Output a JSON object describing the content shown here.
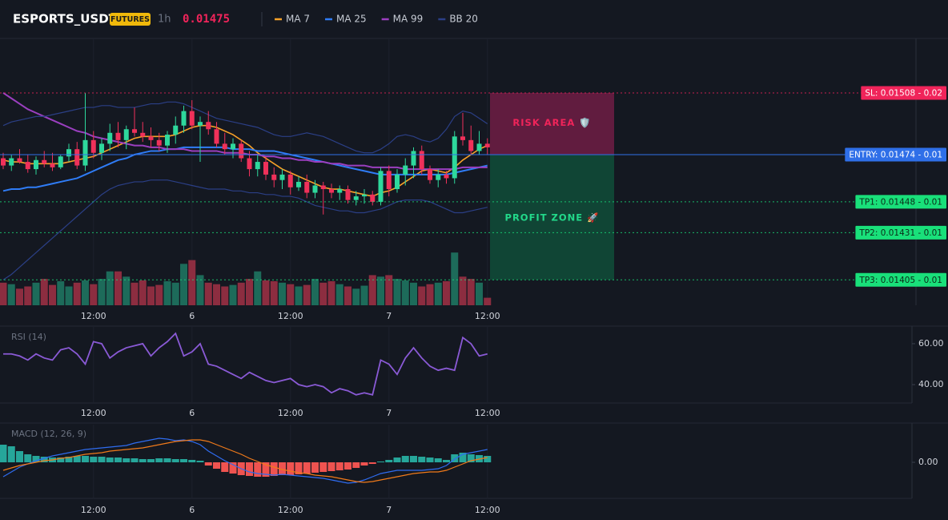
{
  "header": {
    "symbol": "ESPORTS_USDT",
    "badge": "FUTURES",
    "interval": "1h",
    "price": 0.01475
  },
  "chart_data": [
    {
      "type": "candlestick",
      "categories": [
        null,
        null,
        null,
        null,
        null,
        null,
        null,
        null,
        null,
        null,
        null,
        "12:00",
        null,
        null,
        null,
        null,
        null,
        null,
        null,
        null,
        null,
        null,
        null,
        "6",
        null,
        null,
        null,
        null,
        null,
        null,
        null,
        null,
        null,
        null,
        null,
        "12:00",
        null,
        null,
        null,
        null,
        null,
        null,
        null,
        null,
        null,
        null,
        null,
        "7",
        null,
        null,
        null,
        null,
        null,
        null,
        null,
        null,
        null,
        null,
        null,
        "12:00"
      ],
      "open": [
        0.01472,
        0.01468,
        0.01472,
        0.0147,
        0.01466,
        0.01471,
        0.01469,
        0.01467,
        0.01473,
        0.01477,
        0.01468,
        0.01482,
        0.01475,
        0.0148,
        0.01486,
        0.01482,
        0.01488,
        0.01486,
        0.01484,
        0.01482,
        0.01479,
        0.01485,
        0.0149,
        0.01498,
        0.0149,
        0.01492,
        0.01488,
        0.0148,
        0.01477,
        0.0148,
        0.01472,
        0.01466,
        0.0147,
        0.01463,
        0.0146,
        0.01463,
        0.01456,
        0.01459,
        0.01453,
        0.01457,
        0.01455,
        0.01453,
        0.01455,
        0.01449,
        0.01451,
        0.01452,
        0.01448,
        0.01465,
        0.01455,
        0.01463,
        0.01468,
        0.01476,
        0.01466,
        0.0146,
        0.01463,
        0.01461,
        0.01484,
        0.01482,
        0.01476,
        0.0148
      ],
      "high": [
        0.01475,
        0.01474,
        0.01477,
        0.01474,
        0.01473,
        0.01476,
        0.01475,
        0.01474,
        0.0148,
        0.01481,
        0.01508,
        0.01487,
        0.01483,
        0.01491,
        0.01492,
        0.0149,
        0.015,
        0.01492,
        0.01489,
        0.01486,
        0.01487,
        0.01495,
        0.01501,
        0.01504,
        0.01495,
        0.01498,
        0.01492,
        0.01486,
        0.01483,
        0.01482,
        0.01476,
        0.01474,
        0.01473,
        0.01467,
        0.01466,
        0.01465,
        0.01462,
        0.01463,
        0.0146,
        0.01459,
        0.01458,
        0.01457,
        0.01457,
        0.01454,
        0.01455,
        0.01454,
        0.01467,
        0.01468,
        0.01466,
        0.01472,
        0.01478,
        0.01479,
        0.01468,
        0.01466,
        0.01465,
        0.01487,
        0.01497,
        0.0149,
        0.01487,
        0.01483
      ],
      "low": [
        0.01466,
        0.01465,
        0.01469,
        0.01464,
        0.01463,
        0.01467,
        0.01465,
        0.01466,
        0.0147,
        0.01466,
        0.01465,
        0.01472,
        0.01471,
        0.01476,
        0.01478,
        0.01477,
        0.01484,
        0.01481,
        0.01478,
        0.01476,
        0.01475,
        0.0148,
        0.01486,
        0.01488,
        0.0147,
        0.01485,
        0.01478,
        0.01474,
        0.01472,
        0.0147,
        0.01462,
        0.01462,
        0.0146,
        0.01456,
        0.01455,
        0.01452,
        0.01454,
        0.0145,
        0.0145,
        0.01441,
        0.0145,
        0.01449,
        0.01447,
        0.01446,
        0.01447,
        0.01446,
        0.01446,
        0.01451,
        0.01453,
        0.01457,
        0.01461,
        0.01463,
        0.01458,
        0.01456,
        0.01458,
        0.01458,
        0.01479,
        0.01474,
        0.01474,
        0.01474
      ],
      "close": [
        0.01468,
        0.01472,
        0.0147,
        0.01466,
        0.01471,
        0.01469,
        0.01467,
        0.01473,
        0.01477,
        0.01468,
        0.01482,
        0.01475,
        0.0148,
        0.01486,
        0.01482,
        0.01488,
        0.01486,
        0.01484,
        0.01482,
        0.01479,
        0.01485,
        0.0149,
        0.01498,
        0.0149,
        0.01492,
        0.01488,
        0.0148,
        0.01477,
        0.0148,
        0.01472,
        0.01466,
        0.0147,
        0.01463,
        0.0146,
        0.01463,
        0.01456,
        0.01459,
        0.01453,
        0.01457,
        0.01455,
        0.01453,
        0.01455,
        0.01449,
        0.01451,
        0.01452,
        0.01448,
        0.01465,
        0.01455,
        0.01463,
        0.01468,
        0.01476,
        0.01466,
        0.0146,
        0.01463,
        0.01461,
        0.01484,
        0.01482,
        0.01476,
        0.0148,
        0.01478
      ],
      "volume": [
        30,
        28,
        22,
        25,
        30,
        35,
        27,
        32,
        25,
        30,
        33,
        28,
        35,
        45,
        45,
        38,
        30,
        33,
        25,
        27,
        32,
        30,
        55,
        60,
        40,
        30,
        28,
        25,
        27,
        30,
        35,
        45,
        33,
        32,
        30,
        28,
        25,
        27,
        35,
        30,
        32,
        28,
        25,
        22,
        26,
        40,
        38,
        40,
        35,
        33,
        30,
        25,
        28,
        30,
        32,
        70,
        38,
        35,
        30,
        10
      ],
      "volume_lim": [
        0,
        100
      ],
      "up_color": "#2ed89c",
      "down_color": "#f0315a",
      "volume_up_color": "#1d6b5a",
      "volume_down_color": "#8c2d40",
      "ylim": [
        0.01391,
        0.01538
      ],
      "grid": true,
      "series": [
        {
          "name": "MA 7",
          "color": "#f7a128",
          "values": [
            0.01471,
            0.0147,
            0.0147,
            0.01469,
            0.01469,
            0.01469,
            0.01469,
            0.01469,
            0.0147,
            0.01471,
            0.01472,
            0.01473,
            0.01475,
            0.01477,
            0.01479,
            0.01481,
            0.01483,
            0.01484,
            0.01484,
            0.01484,
            0.01484,
            0.01485,
            0.01487,
            0.01489,
            0.0149,
            0.0149,
            0.01489,
            0.01487,
            0.01485,
            0.01482,
            0.01479,
            0.01475,
            0.01472,
            0.01469,
            0.01466,
            0.01464,
            0.01462,
            0.0146,
            0.01458,
            0.01456,
            0.01455,
            0.01455,
            0.01454,
            0.01453,
            0.01452,
            0.01451,
            0.01453,
            0.01454,
            0.01456,
            0.01459,
            0.01462,
            0.01465,
            0.01466,
            0.01465,
            0.01464,
            0.01467,
            0.01471,
            0.01474,
            0.01477,
            0.01479
          ]
        },
        {
          "name": "MA 25",
          "color": "#2f7cf6",
          "values": [
            0.01454,
            0.01455,
            0.01455,
            0.01456,
            0.01456,
            0.01457,
            0.01458,
            0.01459,
            0.0146,
            0.01461,
            0.01463,
            0.01465,
            0.01467,
            0.01469,
            0.01471,
            0.01472,
            0.01474,
            0.01475,
            0.01476,
            0.01476,
            0.01477,
            0.01477,
            0.01478,
            0.01478,
            0.01478,
            0.01478,
            0.01478,
            0.01478,
            0.01477,
            0.01477,
            0.01477,
            0.01476,
            0.01476,
            0.01476,
            0.01475,
            0.01474,
            0.01473,
            0.01472,
            0.01471,
            0.0147,
            0.01469,
            0.01468,
            0.01467,
            0.01466,
            0.01465,
            0.01464,
            0.01463,
            0.01463,
            0.01463,
            0.01463,
            0.01463,
            0.01463,
            0.01463,
            0.01463,
            0.01463,
            0.01464,
            0.01465,
            0.01466,
            0.01467,
            0.01468
          ]
        },
        {
          "name": "MA 99",
          "color": "#9b3fc0",
          "values": [
            0.01508,
            0.01505,
            0.01502,
            0.01499,
            0.01497,
            0.01495,
            0.01493,
            0.01491,
            0.01489,
            0.01487,
            0.01486,
            0.01484,
            0.01483,
            0.01482,
            0.01481,
            0.0148,
            0.01479,
            0.01479,
            0.01478,
            0.01478,
            0.01477,
            0.01477,
            0.01477,
            0.01476,
            0.01476,
            0.01476,
            0.01476,
            0.01475,
            0.01475,
            0.01475,
            0.01474,
            0.01474,
            0.01473,
            0.01473,
            0.01472,
            0.01472,
            0.01471,
            0.01471,
            0.0147,
            0.0147,
            0.01469,
            0.01469,
            0.01468,
            0.01468,
            0.01468,
            0.01467,
            0.01467,
            0.01467,
            0.01467,
            0.01466,
            0.01466,
            0.01466,
            0.01466,
            0.01466,
            0.01466,
            0.01466,
            0.01467,
            0.01467,
            0.01467,
            0.01467
          ]
        },
        {
          "name": "BB 20",
          "color": "#2b3f86",
          "upper": [
            0.0149,
            0.01492,
            0.01493,
            0.01494,
            0.01495,
            0.01495,
            0.01496,
            0.01497,
            0.01498,
            0.01499,
            0.015,
            0.015,
            0.01501,
            0.01501,
            0.015,
            0.015,
            0.015,
            0.01501,
            0.01502,
            0.01502,
            0.01503,
            0.01503,
            0.01502,
            0.015,
            0.01498,
            0.01496,
            0.01494,
            0.01493,
            0.01492,
            0.01491,
            0.0149,
            0.01489,
            0.01487,
            0.01485,
            0.01484,
            0.01484,
            0.01485,
            0.01486,
            0.01485,
            0.01484,
            0.01482,
            0.0148,
            0.01478,
            0.01476,
            0.01475,
            0.01475,
            0.01477,
            0.0148,
            0.01484,
            0.01485,
            0.01484,
            0.01482,
            0.01481,
            0.01483,
            0.01488,
            0.01495,
            0.01498,
            0.01497,
            0.01494,
            0.01491
          ],
          "lower": [
            0.01405,
            0.01408,
            0.01412,
            0.01416,
            0.0142,
            0.01424,
            0.01428,
            0.01432,
            0.01436,
            0.0144,
            0.01444,
            0.01448,
            0.01452,
            0.01455,
            0.01457,
            0.01458,
            0.01459,
            0.01459,
            0.0146,
            0.0146,
            0.0146,
            0.01459,
            0.01458,
            0.01457,
            0.01456,
            0.01455,
            0.01455,
            0.01455,
            0.01454,
            0.01454,
            0.01453,
            0.01453,
            0.01452,
            0.01452,
            0.01451,
            0.01451,
            0.0145,
            0.01448,
            0.01446,
            0.01445,
            0.01444,
            0.01443,
            0.01443,
            0.01442,
            0.01442,
            0.01443,
            0.01444,
            0.01446,
            0.01448,
            0.01449,
            0.01449,
            0.01449,
            0.01448,
            0.01446,
            0.01444,
            0.01442,
            0.01442,
            0.01443,
            0.01444,
            0.01445
          ]
        }
      ],
      "levels": [
        {
          "label": "SL: 0.01508 - 0.02",
          "value": 0.01508,
          "color": "#f0245a",
          "text_color": "#ffffff",
          "style": "dotted"
        },
        {
          "label": "ENTRY: 0.01474 - 0.01",
          "value": 0.01474,
          "color": "#2f6fe8",
          "text_color": "#ffffff",
          "style": "solid"
        },
        {
          "label": "TP1: 0.01448 - 0.01",
          "value": 0.01448,
          "color": "#19e07a",
          "text_color": "#0b2a18",
          "style": "dotted"
        },
        {
          "label": "TP2: 0.01431 - 0.01",
          "value": 0.01431,
          "color": "#19e07a",
          "text_color": "#0b2a18",
          "style": "dotted"
        },
        {
          "label": "TP3: 0.01405 - 0.01",
          "value": 0.01405,
          "color": "#19e07a",
          "text_color": "#0b2a18",
          "style": "dotted"
        }
      ],
      "zones": [
        {
          "label": "RISK AREA 🛡️",
          "color": "#6e1d44",
          "text_color": "#f0245a"
        },
        {
          "label": "PROFIT ZONE 🚀",
          "color": "#0f4d38",
          "text_color": "#22d98a"
        }
      ]
    },
    {
      "type": "line",
      "title": "RSI (14)",
      "color": "#8a5ad6",
      "values": [
        55,
        55,
        54,
        52,
        55,
        53,
        52,
        57,
        58,
        55,
        50,
        61,
        60,
        53,
        56,
        58,
        59,
        60,
        54,
        58,
        61,
        65,
        54,
        56,
        60,
        50,
        49,
        47,
        45,
        43,
        46,
        44,
        42,
        41,
        42,
        43,
        40,
        39,
        40,
        39,
        36,
        38,
        37,
        35,
        36,
        35,
        52,
        50,
        45,
        53,
        58,
        53,
        49,
        47,
        48,
        47,
        63,
        60,
        54,
        55
      ],
      "ylim": [
        31.4,
        68.2
      ],
      "yticks": [
        {
          "value": 40,
          "label": "40.00"
        },
        {
          "value": 60,
          "label": "60.00"
        }
      ]
    },
    {
      "type": "macd",
      "title": "MACD (12, 26, 9)",
      "histogram": {
        "values": [
          2.2e-05,
          2e-05,
          1.4e-05,
          1e-05,
          8e-06,
          7e-06,
          6e-06,
          6e-06,
          7e-06,
          8e-06,
          8e-06,
          7e-06,
          7e-06,
          6e-06,
          6e-06,
          5e-06,
          5e-06,
          4e-06,
          4e-06,
          5e-06,
          5e-06,
          4e-06,
          4e-06,
          3e-06,
          2e-06,
          -4e-06,
          -8e-06,
          -1.2e-05,
          -1.4e-05,
          -1.6e-05,
          -1.7e-05,
          -1.8e-05,
          -1.8e-05,
          -1.7e-05,
          -1.6e-05,
          -1.6e-05,
          -1.5e-05,
          -1.4e-05,
          -1.3e-05,
          -1.2e-05,
          -1.1e-05,
          -1e-05,
          -9e-06,
          -7e-06,
          -4e-06,
          -2e-06,
          1e-06,
          3e-06,
          6e-06,
          8e-06,
          8e-06,
          7e-06,
          6e-06,
          5e-06,
          3e-06,
          1e-05,
          1.2e-05,
          1e-05,
          9e-06,
          8e-06
        ],
        "up_color": "#26a69a",
        "down_color": "#ef5350"
      },
      "series": [
        {
          "color": "#2f6cf0",
          "values": [
            -1.8e-05,
            -1.2e-05,
            -6e-06,
            -2e-06,
            2e-06,
            5e-06,
            8e-06,
            1e-05,
            1.2e-05,
            1.4e-05,
            1.6e-05,
            1.7e-05,
            1.8e-05,
            1.9e-05,
            2e-05,
            2.1e-05,
            2.4e-05,
            2.6e-05,
            2.8e-05,
            3e-05,
            2.9e-05,
            2.7e-05,
            2.8e-05,
            2.6e-05,
            2.2e-05,
            1.4e-05,
            8e-06,
            2e-06,
            -3e-06,
            -8e-06,
            -1.2e-05,
            -1.4e-05,
            -1.5e-05,
            -1.6e-05,
            -1.5e-05,
            -1.6e-05,
            -1.7e-05,
            -1.8e-05,
            -1.9e-05,
            -2e-05,
            -2.2e-05,
            -2.4e-05,
            -2.6e-05,
            -2.5e-05,
            -2.2e-05,
            -1.8e-05,
            -1.4e-05,
            -1.2e-05,
            -1e-05,
            -1e-05,
            -1e-05,
            -1e-05,
            -9e-06,
            -8e-06,
            -4e-06,
            4e-06,
            1e-05,
            1.2e-05,
            1.4e-05,
            1.6e-05
          ]
        },
        {
          "color": "#f07a1a",
          "values": [
            -1e-05,
            -7e-06,
            -4e-06,
            -2e-06,
            0,
            2e-06,
            3e-06,
            5e-06,
            6e-06,
            8e-06,
            1e-05,
            1.1e-05,
            1.2e-05,
            1.4e-05,
            1.5e-05,
            1.6e-05,
            1.7e-05,
            1.8e-05,
            2e-05,
            2.2e-05,
            2.4e-05,
            2.6e-05,
            2.7e-05,
            2.8e-05,
            2.8e-05,
            2.6e-05,
            2.2e-05,
            1.8e-05,
            1.4e-05,
            1e-05,
            5e-06,
            1e-06,
            -3e-06,
            -6e-06,
            -9e-06,
            -1.1e-05,
            -1.3e-05,
            -1.4e-05,
            -1.6e-05,
            -1.7e-05,
            -1.8e-05,
            -2e-05,
            -2.2e-05,
            -2.4e-05,
            -2.5e-05,
            -2.4e-05,
            -2.2e-05,
            -2e-05,
            -1.8e-05,
            -1.6e-05,
            -1.4e-05,
            -1.3e-05,
            -1.2e-05,
            -1.2e-05,
            -1e-05,
            -6e-06,
            -2e-06,
            2e-06,
            4e-06,
            6e-06
          ]
        }
      ],
      "ylim": [
        -4.5e-05,
        4.7e-05
      ],
      "yticks": [
        {
          "value": 0,
          "label": "0.00"
        }
      ]
    }
  ]
}
